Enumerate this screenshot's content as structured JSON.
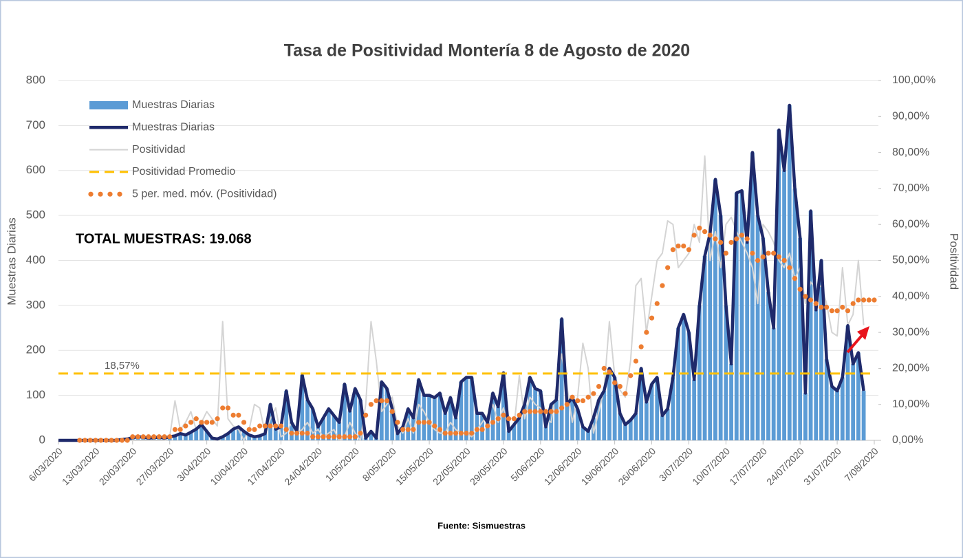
{
  "chart_data": {
    "type": "combo",
    "title": "Tasa de Positividad Montería 8 de Agosto de 2020",
    "y_label": "Muestras Diarias",
    "y2_label": "Positividad",
    "annotation": "TOTAL MUESTRAS: 19.068",
    "source": "Fuente: Sismuestras",
    "grid": true,
    "legend": "upper-left",
    "ylim": [
      0,
      800
    ],
    "yticks": [
      0,
      100,
      200,
      300,
      400,
      500,
      600,
      700,
      800
    ],
    "y2lim": [
      0,
      100
    ],
    "y2ticks": [
      {
        "value": 0,
        "label": "0,00%"
      },
      {
        "value": 10,
        "label": "10,00%"
      },
      {
        "value": 20,
        "label": "20,00%"
      },
      {
        "value": 30,
        "label": "30,00%"
      },
      {
        "value": 40,
        "label": "40,00%"
      },
      {
        "value": 50,
        "label": "50,00%"
      },
      {
        "value": 60,
        "label": "60,00%"
      },
      {
        "value": 70,
        "label": "70,00%"
      },
      {
        "value": 80,
        "label": "80,00%"
      },
      {
        "value": 90,
        "label": "90,00%"
      },
      {
        "value": 100,
        "label": "100,00%"
      }
    ],
    "categories": [
      "6/03/2020",
      null,
      null,
      null,
      null,
      null,
      null,
      "13/03/2020",
      null,
      null,
      null,
      null,
      null,
      null,
      "20/03/2020",
      null,
      null,
      null,
      null,
      null,
      null,
      "27/03/2020",
      null,
      null,
      null,
      null,
      null,
      null,
      "3/04/2020",
      null,
      null,
      null,
      null,
      null,
      null,
      "10/04/2020",
      null,
      null,
      null,
      null,
      null,
      null,
      "17/04/2020",
      null,
      null,
      null,
      null,
      null,
      null,
      "24/04/2020",
      null,
      null,
      null,
      null,
      null,
      null,
      "1/05/2020",
      null,
      null,
      null,
      null,
      null,
      null,
      "8/05/2020",
      null,
      null,
      null,
      null,
      null,
      null,
      "15/05/2020",
      null,
      null,
      null,
      null,
      null,
      null,
      "22/05/2020",
      null,
      null,
      null,
      null,
      null,
      null,
      "29/05/2020",
      null,
      null,
      null,
      null,
      null,
      null,
      "5/06/2020",
      null,
      null,
      null,
      null,
      null,
      null,
      "12/06/2020",
      null,
      null,
      null,
      null,
      null,
      null,
      "19/06/2020",
      null,
      null,
      null,
      null,
      null,
      null,
      "26/06/2020",
      null,
      null,
      null,
      null,
      null,
      null,
      "3/07/2020",
      null,
      null,
      null,
      null,
      null,
      null,
      "10/07/2020",
      null,
      null,
      null,
      null,
      null,
      null,
      "17/07/2020",
      null,
      null,
      null,
      null,
      null,
      null,
      "24/07/2020",
      null,
      null,
      null,
      null,
      null,
      null,
      "31/07/2020",
      null,
      null,
      null,
      null,
      null,
      null,
      "7/08/2020"
    ],
    "series": [
      {
        "name": "Muestras Diarias",
        "type": "bar",
        "color": "#5b9bd5",
        "values": [
          0,
          0,
          0,
          0,
          0,
          0,
          0,
          0,
          0,
          0,
          0,
          0,
          2,
          3,
          6,
          8,
          7,
          5,
          6,
          7,
          5,
          8,
          10,
          15,
          12,
          18,
          25,
          35,
          20,
          5,
          3,
          8,
          15,
          25,
          30,
          20,
          12,
          8,
          10,
          15,
          80,
          25,
          30,
          110,
          40,
          20,
          145,
          90,
          70,
          30,
          50,
          70,
          55,
          40,
          125,
          65,
          115,
          90,
          5,
          20,
          5,
          130,
          115,
          70,
          15,
          30,
          70,
          50,
          135,
          100,
          100,
          95,
          105,
          60,
          95,
          50,
          130,
          140,
          140,
          60,
          60,
          40,
          105,
          75,
          150,
          20,
          35,
          50,
          80,
          140,
          115,
          110,
          30,
          80,
          90,
          270,
          80,
          95,
          70,
          30,
          20,
          50,
          90,
          110,
          160,
          140,
          60,
          35,
          45,
          60,
          160,
          85,
          125,
          140,
          55,
          70,
          140,
          250,
          280,
          240,
          135,
          300,
          410,
          460,
          580,
          500,
          300,
          170,
          550,
          555,
          440,
          640,
          500,
          450,
          330,
          250,
          690,
          600,
          745,
          560,
          450,
          105,
          510,
          290,
          400,
          180,
          120,
          110,
          140,
          255,
          170,
          195,
          110,
          null,
          null
        ]
      },
      {
        "name": "Muestras Diarias",
        "type": "line",
        "color": "#1f2a6b",
        "values": [
          0,
          0,
          0,
          0,
          0,
          0,
          0,
          0,
          0,
          0,
          0,
          0,
          2,
          3,
          6,
          8,
          7,
          5,
          6,
          7,
          5,
          8,
          10,
          15,
          12,
          18,
          25,
          35,
          20,
          5,
          3,
          8,
          15,
          25,
          30,
          20,
          12,
          8,
          10,
          15,
          80,
          25,
          30,
          110,
          40,
          20,
          145,
          90,
          70,
          30,
          50,
          70,
          55,
          40,
          125,
          65,
          115,
          90,
          5,
          20,
          5,
          130,
          115,
          70,
          15,
          30,
          70,
          50,
          135,
          100,
          100,
          95,
          105,
          60,
          95,
          50,
          130,
          140,
          140,
          60,
          60,
          40,
          105,
          75,
          150,
          20,
          35,
          50,
          80,
          140,
          115,
          110,
          30,
          80,
          90,
          270,
          80,
          95,
          70,
          30,
          20,
          50,
          90,
          110,
          160,
          140,
          60,
          35,
          45,
          60,
          160,
          85,
          125,
          140,
          55,
          70,
          140,
          250,
          280,
          240,
          135,
          300,
          410,
          460,
          580,
          500,
          300,
          170,
          550,
          555,
          440,
          640,
          500,
          450,
          330,
          250,
          690,
          600,
          745,
          560,
          450,
          105,
          510,
          290,
          400,
          180,
          120,
          110,
          140,
          255,
          170,
          195,
          110,
          null,
          null
        ]
      },
      {
        "name": "Positividad",
        "type": "line",
        "axis": "y2",
        "color": "#d4d4d4",
        "values": [
          0,
          0,
          0,
          0,
          0,
          0,
          0,
          0,
          0,
          0,
          0,
          0,
          0,
          0,
          0,
          0,
          0,
          0,
          0,
          0,
          0,
          1,
          11,
          3,
          5,
          8,
          3,
          5,
          8,
          6,
          4,
          33,
          6,
          4,
          3,
          0,
          3,
          10,
          9,
          2,
          6,
          9,
          1,
          2,
          5,
          2,
          3,
          5,
          2,
          3,
          1,
          2,
          3,
          0,
          1,
          5,
          2,
          0,
          10,
          33,
          22,
          8,
          10,
          12,
          4,
          2,
          6,
          2,
          10,
          8,
          5,
          3,
          2,
          2,
          5,
          3,
          2,
          2,
          1,
          3,
          5,
          7,
          10,
          5,
          9,
          3,
          4,
          18,
          6,
          12,
          10,
          9,
          6,
          5,
          15,
          24,
          15,
          5,
          12,
          27,
          20,
          2,
          8,
          14,
          33,
          18,
          14,
          12,
          22,
          43,
          45,
          30,
          40,
          50,
          52,
          61,
          60,
          48,
          50,
          52,
          60,
          55,
          79,
          50,
          58,
          48,
          60,
          62,
          58,
          55,
          52,
          48,
          38,
          60,
          58,
          55,
          50,
          48,
          52,
          45,
          48,
          38,
          44,
          42,
          43,
          38,
          30,
          29,
          48,
          32,
          35,
          50,
          32,
          null,
          null
        ]
      },
      {
        "name": "Positividad Promedio",
        "type": "hline",
        "axis": "y2",
        "color": "#ffc000",
        "value": 18.57,
        "value_label": "18,57%"
      },
      {
        "name": "5 per. med. móv. (Positividad)",
        "type": "dots",
        "axis": "y2",
        "color": "#ed7d31",
        "values": [
          null,
          null,
          null,
          null,
          0,
          0,
          0,
          0,
          0,
          0,
          0,
          0,
          0,
          0,
          1,
          1,
          1,
          1,
          1,
          1,
          1,
          1,
          3,
          3,
          4,
          5,
          6,
          5,
          5,
          5,
          6,
          9,
          9,
          7,
          7,
          5,
          3,
          3,
          4,
          4,
          4,
          4,
          4,
          3,
          2,
          2,
          2,
          2,
          1,
          1,
          1,
          1,
          1,
          1,
          1,
          1,
          1,
          2,
          7,
          10,
          11,
          11,
          11,
          8,
          5,
          3,
          3,
          3,
          5,
          5,
          5,
          4,
          3,
          2,
          2,
          2,
          2,
          2,
          2,
          3,
          3,
          4,
          5,
          6,
          7,
          6,
          6,
          7,
          8,
          8,
          8,
          8,
          8,
          8,
          8,
          9,
          10,
          12,
          11,
          11,
          12,
          13,
          15,
          20,
          19,
          16,
          15,
          13,
          18,
          22,
          26,
          30,
          34,
          38,
          43,
          48,
          53,
          54,
          54,
          53,
          57,
          59,
          58,
          57,
          56,
          55,
          52,
          55,
          56,
          57,
          56,
          52,
          50,
          51,
          52,
          52,
          51,
          50,
          48,
          45,
          42,
          40,
          39,
          38,
          37,
          37,
          36,
          36,
          37,
          36,
          38,
          39,
          39,
          39,
          39
        ]
      }
    ]
  }
}
